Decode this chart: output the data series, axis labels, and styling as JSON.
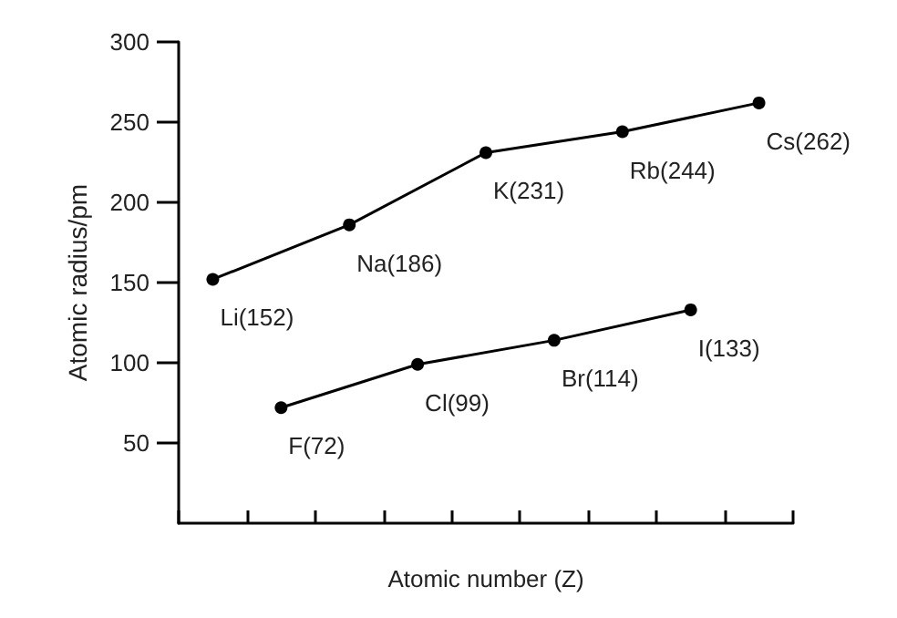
{
  "chart_data": {
    "type": "line",
    "xlabel": "Atomic number (Z)",
    "ylabel": "Atomic radius/pm",
    "categories": [
      null,
      null,
      null,
      null,
      null,
      null,
      null,
      null,
      null
    ],
    "ylim": [
      0,
      300
    ],
    "yticks": [
      50,
      100,
      150,
      200,
      250,
      300
    ],
    "tick_labels": "y",
    "grid": false,
    "marker": "circle",
    "line_style": "solid",
    "series": [
      {
        "color": "#000000",
        "values": [
          152,
          null,
          186,
          null,
          231,
          null,
          244,
          null,
          262
        ],
        "value_labels": [
          "Li(152)",
          null,
          "Na(186)",
          null,
          "K(231)",
          null,
          "Rb(244)",
          null,
          "Cs(262)"
        ]
      },
      {
        "color": "#000000",
        "values": [
          null,
          72,
          null,
          99,
          null,
          114,
          null,
          133,
          null
        ],
        "value_labels": [
          null,
          "F(72)",
          null,
          "Cl(99)",
          null,
          "Br(114)",
          null,
          "I(133)",
          null
        ]
      }
    ]
  }
}
